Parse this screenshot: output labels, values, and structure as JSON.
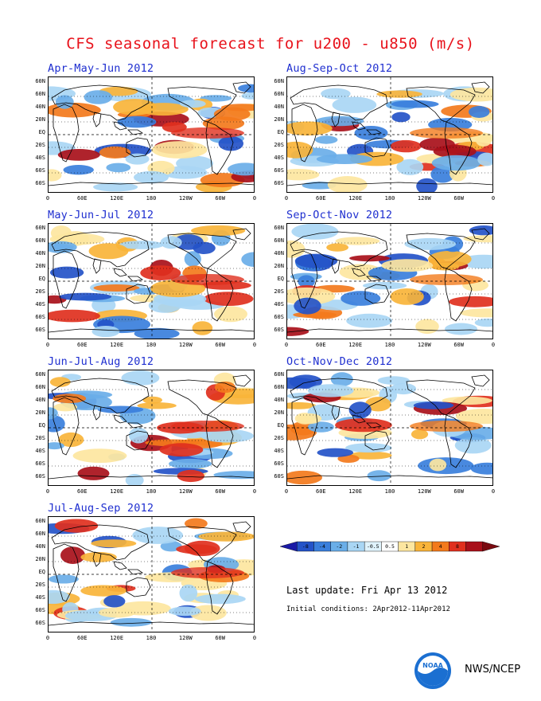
{
  "title": "CFS seasonal forecast for u200 - u850 (m/s)",
  "panels": [
    {
      "label": "Apr-May-Jun 2012",
      "seed": 1
    },
    {
      "label": "Aug-Sep-Oct 2012",
      "seed": 5
    },
    {
      "label": "May-Jun-Jul 2012",
      "seed": 2
    },
    {
      "label": "Sep-Oct-Nov 2012",
      "seed": 6
    },
    {
      "label": "Jun-Jul-Aug 2012",
      "seed": 3
    },
    {
      "label": "Oct-Nov-Dec 2012",
      "seed": 7
    },
    {
      "label": "Jul-Aug-Sep 2012",
      "seed": 4
    }
  ],
  "lat_labels": [
    "60N",
    "60N",
    "40N",
    "20N",
    "EQ",
    "20S",
    "40S",
    "60S",
    "60S"
  ],
  "lon_labels": [
    "0",
    "60E",
    "120E",
    "180",
    "120W",
    "60W",
    "0"
  ],
  "colorbar": {
    "ticks": [
      "-8",
      "-4",
      "-2",
      "-1",
      "-0.5",
      "0.5",
      "1",
      "2",
      "4",
      "8"
    ],
    "colors": [
      "#1a1aa6",
      "#2453c8",
      "#3a7fdc",
      "#6aaee8",
      "#a9d6f4",
      "#dff2fb",
      "#ffffff",
      "#fde6a0",
      "#f9b43a",
      "#f37a1c",
      "#e0301e",
      "#a8101a",
      "#7a0a10"
    ]
  },
  "last_update": "Last update: Fri Apr 13 2012",
  "initial_conditions": "Initial conditions: 2Apr2012-11Apr2012",
  "footer": {
    "org": "NWS/NCEP",
    "logo_icon": "noaa-logo"
  }
}
